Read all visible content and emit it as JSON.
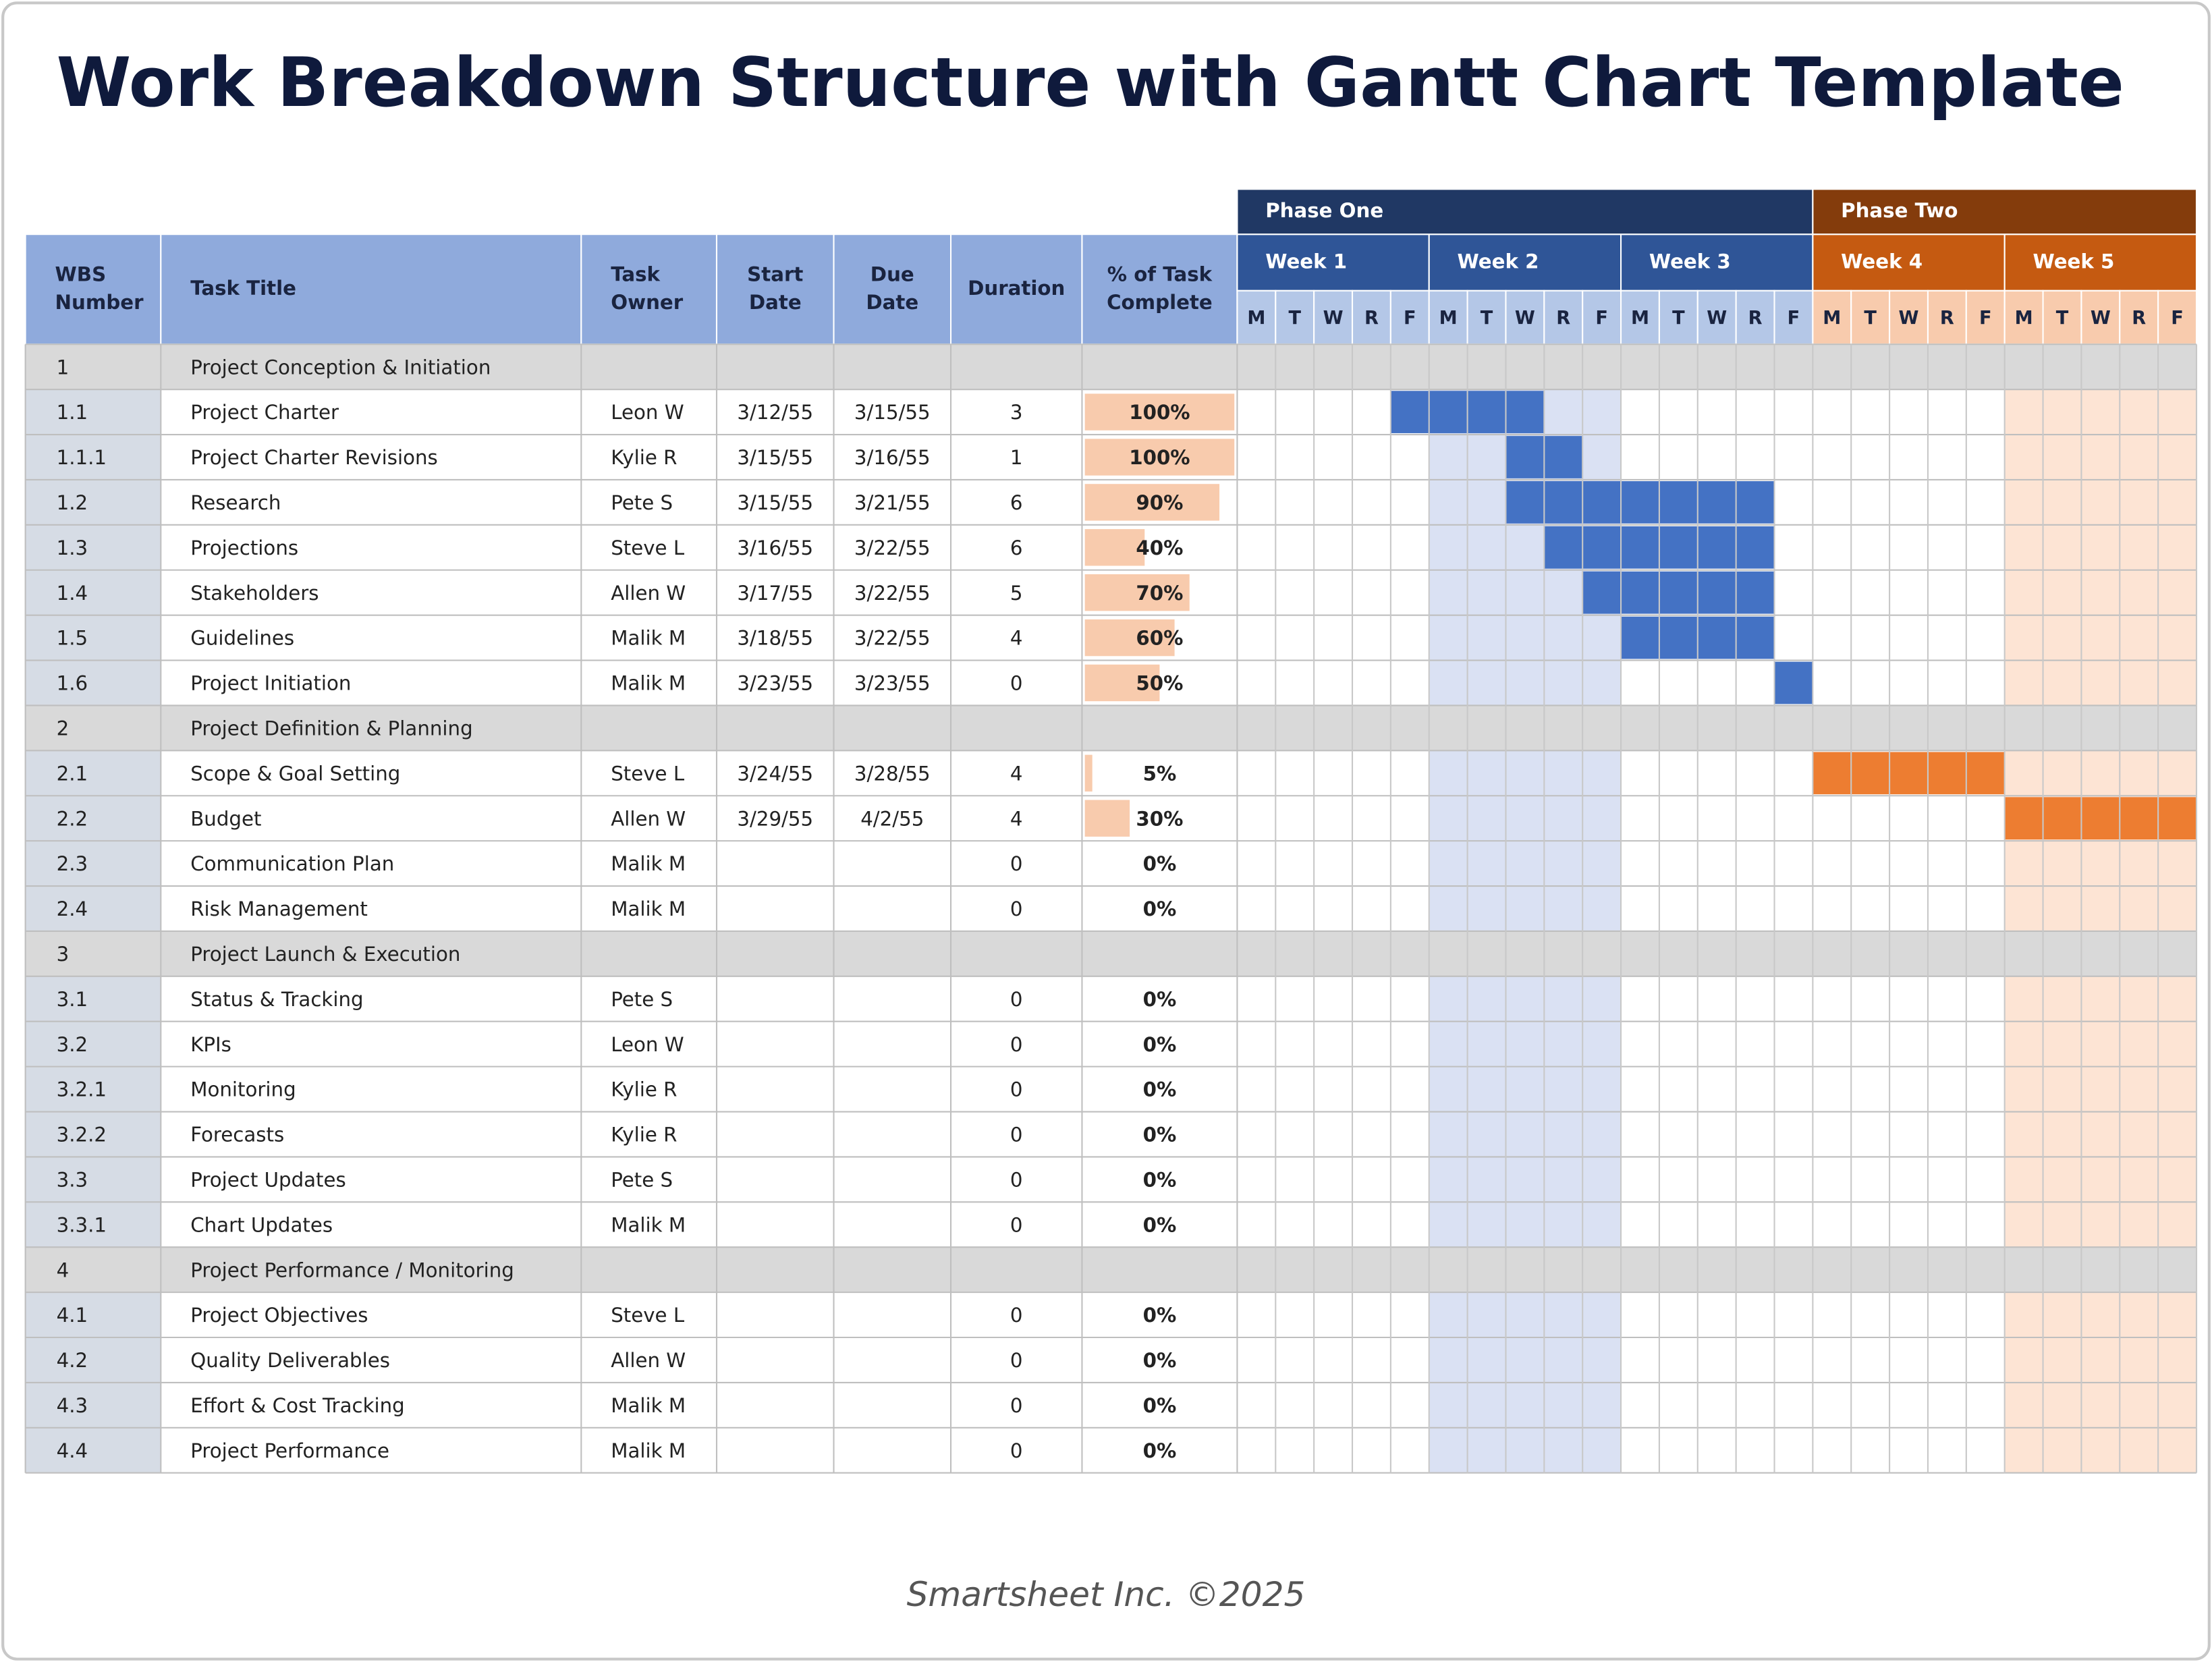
{
  "header": {
    "title": "Work Breakdown Structure with Gantt Chart Template"
  },
  "table": {
    "columns": [
      [
        "WBS",
        "Number"
      ],
      [
        "Task Title"
      ],
      [
        "Task",
        "Owner"
      ],
      [
        "Start",
        "Date"
      ],
      [
        "Due",
        "Date"
      ],
      [
        "Duration"
      ],
      [
        "% of Task",
        "Complete"
      ]
    ],
    "phases": [
      {
        "name": "Phase One",
        "weeks": [
          "Week 1",
          "Week 2",
          "Week 3"
        ]
      },
      {
        "name": "Phase Two",
        "weeks": [
          "Week 4",
          "Week 5"
        ]
      }
    ],
    "days": [
      "M",
      "T",
      "W",
      "R",
      "F"
    ],
    "rows": [
      {
        "wbs": "1",
        "title": "Project Conception & Initiation",
        "group": true
      },
      {
        "wbs": "1.1",
        "title": "Project Charter",
        "owner": "Leon W",
        "start": "3/12/55",
        "due": "3/15/55",
        "duration": 3,
        "pct": 100,
        "pct_label": "100%",
        "gantt": {
          "start": 4,
          "end": 7
        }
      },
      {
        "wbs": "1.1.1",
        "title": "Project Charter Revisions",
        "owner": "Kylie R",
        "start": "3/15/55",
        "due": "3/16/55",
        "duration": 1,
        "pct": 100,
        "pct_label": "100%",
        "gantt": {
          "start": 7,
          "end": 8
        }
      },
      {
        "wbs": "1.2",
        "title": "Research",
        "owner": "Pete S",
        "start": "3/15/55",
        "due": "3/21/55",
        "duration": 6,
        "pct": 90,
        "pct_label": "90%",
        "gantt": {
          "start": 7,
          "end": 13
        }
      },
      {
        "wbs": "1.3",
        "title": "Projections",
        "owner": "Steve L",
        "start": "3/16/55",
        "due": "3/22/55",
        "duration": 6,
        "pct": 40,
        "pct_label": "40%",
        "gantt": {
          "start": 8,
          "end": 13
        }
      },
      {
        "wbs": "1.4",
        "title": "Stakeholders",
        "owner": "Allen W",
        "start": "3/17/55",
        "due": "3/22/55",
        "duration": 5,
        "pct": 70,
        "pct_label": "70%",
        "gantt": {
          "start": 9,
          "end": 13
        }
      },
      {
        "wbs": "1.5",
        "title": "Guidelines",
        "owner": "Malik M",
        "start": "3/18/55",
        "due": "3/22/55",
        "duration": 4,
        "pct": 60,
        "pct_label": "60%",
        "gantt": {
          "start": 10,
          "end": 13
        }
      },
      {
        "wbs": "1.6",
        "title": "Project Initiation",
        "owner": "Malik M",
        "start": "3/23/55",
        "due": "3/23/55",
        "duration": 0,
        "pct": 50,
        "pct_label": "50%",
        "gantt": {
          "start": 14,
          "end": 14
        }
      },
      {
        "wbs": "2",
        "title": "Project Definition & Planning",
        "group": true
      },
      {
        "wbs": "2.1",
        "title": "Scope & Goal Setting",
        "owner": "Steve L",
        "start": "3/24/55",
        "due": "3/28/55",
        "duration": 4,
        "pct": 5,
        "pct_label": "5%",
        "gantt": {
          "start": 15,
          "end": 19
        }
      },
      {
        "wbs": "2.2",
        "title": "Budget",
        "owner": "Allen W",
        "start": "3/29/55",
        "due": "4/2/55",
        "duration": 4,
        "pct": 30,
        "pct_label": "30%",
        "gantt": {
          "start": 20,
          "end": 24
        }
      },
      {
        "wbs": "2.3",
        "title": "Communication Plan",
        "owner": "Malik M",
        "duration": 0,
        "pct": 0,
        "pct_label": "0%"
      },
      {
        "wbs": "2.4",
        "title": "Risk Management",
        "owner": "Malik M",
        "duration": 0,
        "pct": 0,
        "pct_label": "0%"
      },
      {
        "wbs": "3",
        "title": "Project Launch & Execution",
        "group": true
      },
      {
        "wbs": "3.1",
        "title": "Status & Tracking",
        "owner": "Pete S",
        "duration": 0,
        "pct": 0,
        "pct_label": "0%"
      },
      {
        "wbs": "3.2",
        "title": "KPIs",
        "owner": "Leon W",
        "duration": 0,
        "pct": 0,
        "pct_label": "0%"
      },
      {
        "wbs": "3.2.1",
        "title": "Monitoring",
        "owner": "Kylie R",
        "duration": 0,
        "pct": 0,
        "pct_label": "0%"
      },
      {
        "wbs": "3.2.2",
        "title": "Forecasts",
        "owner": "Kylie R",
        "duration": 0,
        "pct": 0,
        "pct_label": "0%"
      },
      {
        "wbs": "3.3",
        "title": "Project Updates",
        "owner": "Pete S",
        "duration": 0,
        "pct": 0,
        "pct_label": "0%"
      },
      {
        "wbs": "3.3.1",
        "title": "Chart Updates",
        "owner": "Malik M",
        "duration": 0,
        "pct": 0,
        "pct_label": "0%"
      },
      {
        "wbs": "4",
        "title": "Project Performance / Monitoring",
        "group": true
      },
      {
        "wbs": "4.1",
        "title": "Project Objectives",
        "owner": "Steve L",
        "duration": 0,
        "pct": 0,
        "pct_label": "0%"
      },
      {
        "wbs": "4.2",
        "title": "Quality Deliverables",
        "owner": "Allen W",
        "duration": 0,
        "pct": 0,
        "pct_label": "0%"
      },
      {
        "wbs": "4.3",
        "title": "Effort & Cost Tracking",
        "owner": "Malik M",
        "duration": 0,
        "pct": 0,
        "pct_label": "0%"
      },
      {
        "wbs": "4.4",
        "title": "Project Performance",
        "owner": "Malik M",
        "duration": 0,
        "pct": 0,
        "pct_label": "0%"
      }
    ]
  },
  "footer": {
    "text": "Smartsheet Inc. ©2025"
  }
}
